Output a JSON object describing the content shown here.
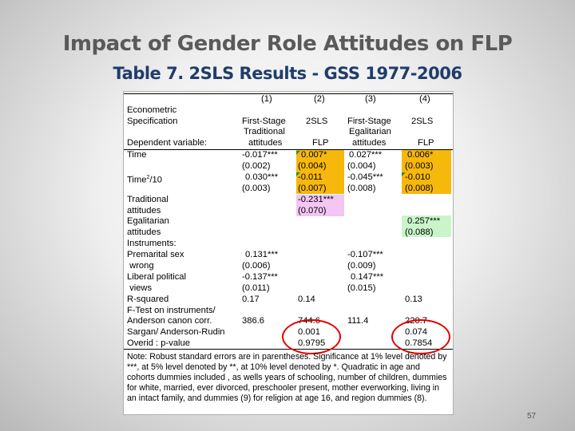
{
  "slide": {
    "title": "Impact of Gender Role Attitudes on FLP",
    "subtitle": "Table 7. 2SLS Results - GSS 1977-2006",
    "page_number": "57"
  },
  "table": {
    "col_numbers": [
      "(1)",
      "(2)",
      "(3)",
      "(4)"
    ],
    "econometric_label": "Econometric",
    "specification_label": "Specification",
    "specifications": [
      "First-Stage",
      "2SLS",
      "First-Stage",
      "2SLS"
    ],
    "dependent_label": "Dependent variable:",
    "dep_line1": [
      "Traditional",
      "",
      "Egalitarian",
      ""
    ],
    "dep_line2": [
      "attitudes",
      "FLP",
      "attitudes",
      "FLP"
    ],
    "time": {
      "label": "Time",
      "coef": [
        "-0.017***",
        "0.007*",
        "0.027***",
        "0.006*"
      ],
      "se": [
        "(0.002)",
        "(0.004)",
        "(0.004)",
        "(0.003)"
      ]
    },
    "time2": {
      "label_main": "Time",
      "label_sup": "2",
      "label_tail": "/10",
      "coef": [
        "0.030***",
        "-0.011",
        "-0.045***",
        "-0.010"
      ],
      "se": [
        "(0.003)",
        "(0.007)",
        "(0.008)",
        "(0.008)"
      ]
    },
    "traditional": {
      "label1": "Traditional",
      "label2": "attitudes",
      "coef": "-0.231***",
      "se": "(0.070)"
    },
    "egalitarian": {
      "label1": "Egalitarian",
      "label2": "attitudes",
      "coef": "0.257***",
      "se": "(0.088)"
    },
    "instruments_label": "Instruments:",
    "premarital": {
      "label1": "Premarital sex",
      "label2": " wrong",
      "coef": [
        "0.131***",
        "-0.107***"
      ],
      "se": [
        "(0.006)",
        "(0.009)"
      ]
    },
    "liberal": {
      "label1": "Liberal political",
      "label2": " views",
      "coef": [
        "-0.137***",
        "0.147***"
      ],
      "se": [
        "(0.011)",
        "(0.015)"
      ]
    },
    "rsquared": {
      "label": "R-squared",
      "values": [
        "0.17",
        "0.14",
        "0.13"
      ]
    },
    "ftest_label": "F-Test on instruments/",
    "anderson": {
      "label": "Anderson canon corr.",
      "values": [
        "386.6",
        "744.6",
        "111.4",
        "220.7"
      ]
    },
    "sargan": {
      "label": "Sargan/ Anderson-Rudin",
      "values": [
        "0.001",
        "0.074"
      ]
    },
    "overid": {
      "label": "Overid : p-value",
      "values": [
        "0.9795",
        "0.7854"
      ]
    },
    "note": "Note: Robust standard errors are in parentheses.  Significance at 1% level denoted by ***, at 5% level denoted by **, at 10% level denoted by *. Quadratic in age and cohorts dummies included , as wells years of schooling, number of children, dummies for white, married, ever divorced, preschooler present, mother everworking, living in an intact family, and dummies (9) for religion at age 16, and region dummies (8)."
  },
  "colors": {
    "title": "#5a5a5a",
    "subtitle": "#1f3d6b",
    "highlight_orange": "#f7b80c",
    "highlight_pink": "#f3c6f3",
    "highlight_green": "#c9f5c9",
    "circle_red": "#e00000"
  }
}
